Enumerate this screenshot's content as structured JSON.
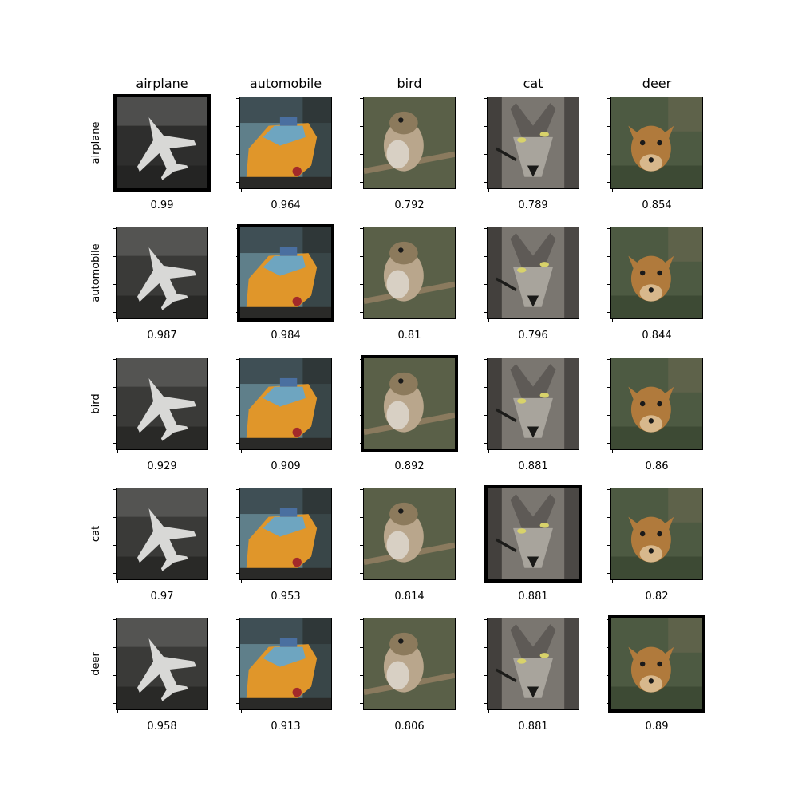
{
  "columns": [
    "airplane",
    "automobile",
    "bird",
    "cat",
    "deer"
  ],
  "rows": [
    "airplane",
    "automobile",
    "bird",
    "cat",
    "deer"
  ],
  "scores": [
    [
      "0.99",
      "0.964",
      "0.792",
      "0.789",
      "0.854"
    ],
    [
      "0.987",
      "0.984",
      "0.81",
      "0.796",
      "0.844"
    ],
    [
      "0.929",
      "0.909",
      "0.892",
      "0.881",
      "0.86"
    ],
    [
      "0.97",
      "0.953",
      "0.814",
      "0.881",
      "0.82"
    ],
    [
      "0.958",
      "0.913",
      "0.806",
      "0.881",
      "0.89"
    ]
  ],
  "highlighted_diagonal": true,
  "image_subjects": [
    "airplane-image",
    "automobile-image",
    "bird-image",
    "cat-image",
    "deer-image"
  ],
  "colors": {
    "airplane_bg": "#3a3a38",
    "airplane_fg": "#d8d8d6",
    "taxi": "#e0962a",
    "taxi_bg": "#5f7f8a",
    "bird_bg": "#5a6048",
    "bird_fg": "#b9a68c",
    "cat_fg": "#7a7670",
    "cat_dark": "#2c2a28",
    "deer_bg": "#4d5a42",
    "deer_fg": "#b07a3c"
  }
}
